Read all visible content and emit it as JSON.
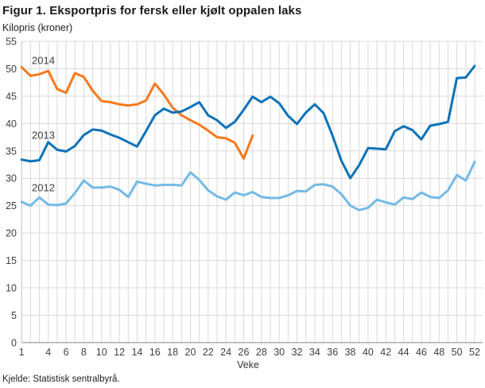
{
  "figure": {
    "title": "Figur 1. Eksportpris for fersk eller kjølt oppalen laks",
    "subtitle": "Kilopris (kroner)",
    "xlabel": "Veke",
    "source": "Kjelde: Statistisk sentralbyrå."
  },
  "colors": {
    "grid": "#d9d9d9",
    "y_axis_line": "#c7c7c7",
    "x_axis_line": "#9c9c9c",
    "tick_text": "#3f3f3f",
    "annotation_text": "#3c3c3c"
  },
  "chart_data": {
    "type": "line",
    "title": "Figur 1. Eksportpris for fersk eller kjølt oppalen laks",
    "ylabel": "Kilopris (kroner)",
    "xlabel": "Veke",
    "xlim": [
      1,
      52
    ],
    "ylim": [
      0,
      55
    ],
    "y_tick_step": 5,
    "y_ticks": [
      0,
      5,
      10,
      15,
      20,
      25,
      30,
      35,
      40,
      45,
      50,
      55
    ],
    "x_tick_weeks": [
      1,
      4,
      6,
      8,
      10,
      12,
      14,
      16,
      18,
      20,
      22,
      24,
      26,
      28,
      30,
      32,
      34,
      36,
      38,
      40,
      42,
      44,
      46,
      48,
      50,
      52
    ],
    "grid": true,
    "legend_position": "inline-labels",
    "series": [
      {
        "name": "2014",
        "color": "#f5791d",
        "start_week": 1,
        "values": [
          50.3,
          48.7,
          49.0,
          49.6,
          46.3,
          45.6,
          49.2,
          48.5,
          46.0,
          44.1,
          43.9,
          43.5,
          43.3,
          43.5,
          44.2,
          47.3,
          45.3,
          42.9,
          41.5,
          40.6,
          39.8,
          38.7,
          37.5,
          37.3,
          36.5,
          33.6,
          37.8
        ]
      },
      {
        "name": "2013",
        "color": "#0e72b8",
        "start_week": 1,
        "values": [
          33.4,
          33.1,
          33.3,
          36.6,
          35.2,
          34.9,
          35.9,
          37.9,
          38.9,
          38.7,
          38.0,
          37.4,
          36.6,
          35.8,
          38.6,
          41.5,
          42.7,
          42.0,
          42.2,
          43.0,
          43.9,
          41.5,
          40.6,
          39.2,
          40.3,
          42.5,
          44.9,
          43.9,
          44.9,
          43.7,
          41.4,
          39.9,
          42.0,
          43.5,
          41.9,
          37.8,
          33.2,
          30.0,
          32.4,
          35.5,
          35.4,
          35.3,
          38.6,
          39.5,
          38.8,
          37.1,
          39.6,
          39.9,
          40.3,
          48.3,
          48.4,
          50.5
        ]
      },
      {
        "name": "2012",
        "color": "#74bae6",
        "start_week": 1,
        "values": [
          25.7,
          25.0,
          26.5,
          25.2,
          25.1,
          25.4,
          27.3,
          29.6,
          28.3,
          28.3,
          28.5,
          27.9,
          26.6,
          29.4,
          29.0,
          28.7,
          28.8,
          28.8,
          28.7,
          31.1,
          29.7,
          27.8,
          26.7,
          26.1,
          27.4,
          26.9,
          27.5,
          26.6,
          26.4,
          26.4,
          26.9,
          27.7,
          27.6,
          28.8,
          28.9,
          28.5,
          27.1,
          25.0,
          24.2,
          24.6,
          26.1,
          25.6,
          25.2,
          26.5,
          26.2,
          27.4,
          26.6,
          26.4,
          27.8,
          30.6,
          29.6,
          33.0
        ]
      }
    ],
    "annotations": [
      {
        "text": "2014",
        "week": 2.15,
        "value": 51.5
      },
      {
        "text": "2013",
        "week": 2.15,
        "value": 37.9
      },
      {
        "text": "2012",
        "week": 2.15,
        "value": 28.3
      }
    ]
  }
}
